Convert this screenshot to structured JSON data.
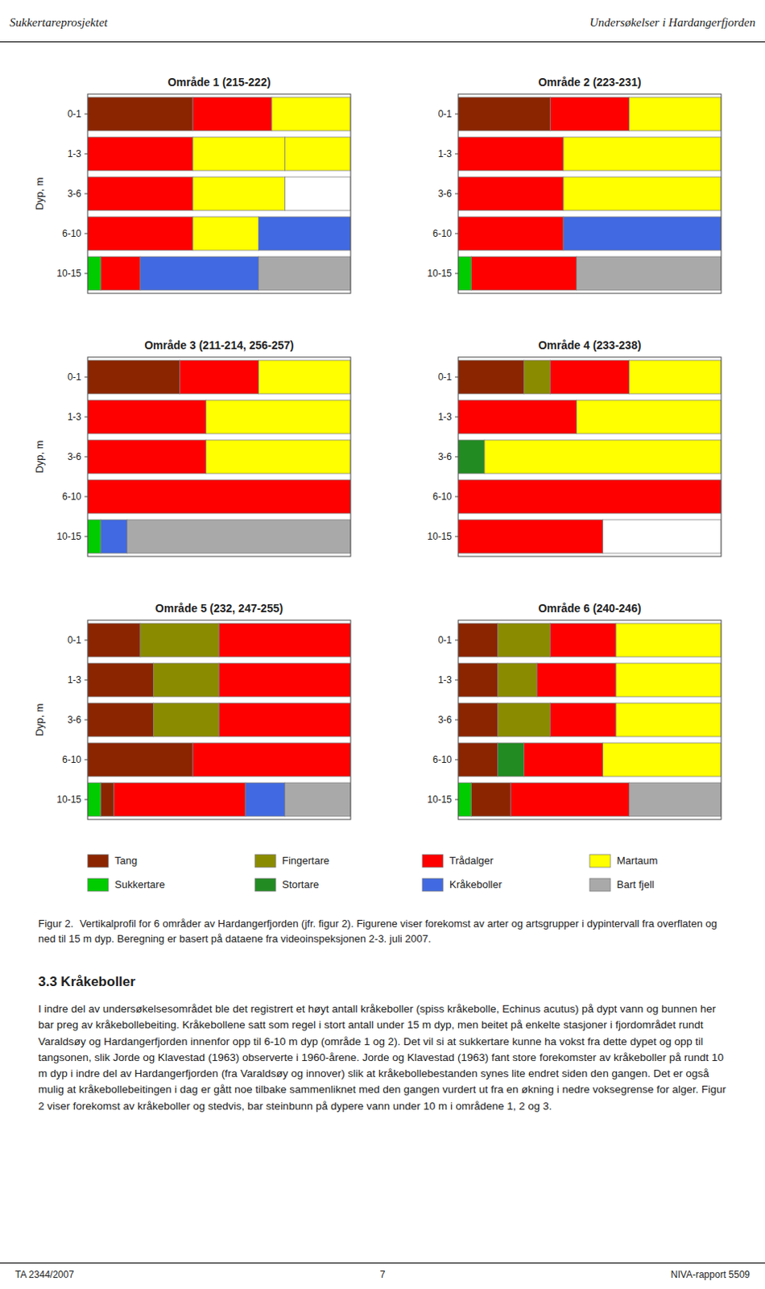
{
  "header_left": "Sukkertareprosjektet",
  "header_right": "Undersøkelser i Hardangerfjorden",
  "legend_entries": [
    {
      "name": "Tang",
      "color": "#8B2500"
    },
    {
      "name": "Fingertare",
      "color": "#8B8B00"
    },
    {
      "name": "Trådalger",
      "color": "#FF0000"
    },
    {
      "name": "Martaum",
      "color": "#FFFF00"
    },
    {
      "name": "Sukkertare",
      "color": "#00CC00"
    },
    {
      "name": "Stortare",
      "color": "#228B22"
    },
    {
      "name": "Kråkeboller",
      "color": "#4169E1"
    },
    {
      "name": "Bart fjell",
      "color": "#A9A9A9"
    }
  ],
  "caption_title": "Figur 2.",
  "caption_text": "Vertikalprofil for 6 områder av Hardangerfjorden (jfr. figur 2). Figurene viser forekomst av arter og artsgrupper i dypintervall fra overflaten og ned til 15 m dyp. Beregning er basert på dataene fra videoinspeksjonen 2-3. juli 2007.",
  "section_title": "3.3 Kråkeboller",
  "section_text": "I indre del av undersøkelsesområdet ble det registrert et høyt antall kråkeboller (spiss kråkebolle, Echinus acutus) på dypt vann og bunnen her bar preg av kråkebollebeiting. Kråkebollene satt som regel i stort antall under 15 m dyp, men beitet på enkelte stasjoner i fjordområdet rundt Varaldsøy og Hardangerfjorden innenfor opp til 6-10 m dyp (område 1 og 2). Det vil si at sukkertare kunne ha vokst fra dette dypet og opp til tangsonen, slik Jorde og Klavestad (1963) observerte i 1960-årene. Jorde og Klavestad (1963) fant store forekomster av kråkeboller på rundt 10 m dyp i indre del av Hardangerfjorden (fra Varaldsøy og innover) slik at kråkebollebestanden synes lite endret siden den gangen. Det er også mulig at kråkebollebeitingen i dag er gått noe tilbake sammenliknet med den gangen vurdert ut fra en økning i nedre voksegrense for alger. Figur 2 viser forekomst av kråkeboller og stedvis, bar steinbunn på dypere vann under 10 m i områdene 1, 2 og 3.",
  "footer_left": "TA 2344/2007",
  "footer_center": "7",
  "footer_right": "NIVA-rapport 5509",
  "chart_data": [
    {
      "type": "bar",
      "orientation": "horizontal",
      "stacked": true,
      "tick_labels": "y",
      "title": "Område 1 (215-222)",
      "ylabel": "Dyp, m",
      "categories": [
        "0-1",
        "1-3",
        "3-6",
        "6-10",
        "10-15"
      ],
      "xlim": [
        0,
        1
      ],
      "series": [
        {
          "values": [
            0.4,
            0.4,
            0.4,
            0.4,
            0.05
          ],
          "colors": [
            "#8B2500",
            "#FF0000",
            "#FF0000",
            "#FF0000",
            "#00CC00"
          ]
        },
        {
          "values": [
            0.3,
            0.35,
            0.35,
            0.25,
            0.15
          ],
          "colors": [
            "#FF0000",
            "#FFFF00",
            "#FFFF00",
            "#FFFF00",
            "#FF0000"
          ]
        },
        {
          "values": [
            0.3,
            0.25,
            0.25,
            0.35,
            0.45
          ],
          "colors": [
            "#FFFF00",
            "#FFFF00",
            "#FFFFFF",
            "#4169E1",
            "#4169E1"
          ]
        },
        {
          "values": [
            null,
            null,
            null,
            null,
            0.35
          ],
          "colors": [
            null,
            null,
            null,
            null,
            "#A9A9A9"
          ]
        }
      ]
    },
    {
      "type": "bar",
      "orientation": "horizontal",
      "stacked": true,
      "tick_labels": "y",
      "title": "Område 2 (223-231)",
      "categories": [
        "0-1",
        "1-3",
        "3-6",
        "6-10",
        "10-15"
      ],
      "xlim": [
        0,
        1
      ],
      "series": [
        {
          "values": [
            0.35,
            0.4,
            0.4,
            0.4,
            0.05
          ],
          "colors": [
            "#8B2500",
            "#FF0000",
            "#FF0000",
            "#FF0000",
            "#00CC00"
          ]
        },
        {
          "values": [
            0.3,
            0.6,
            0.6,
            0.6,
            0.4
          ],
          "colors": [
            "#FF0000",
            "#FFFF00",
            "#FFFF00",
            "#4169E1",
            "#FF0000"
          ]
        },
        {
          "values": [
            0.35,
            null,
            null,
            null,
            0.55
          ],
          "colors": [
            "#FFFF00",
            null,
            null,
            null,
            "#A9A9A9"
          ]
        }
      ]
    },
    {
      "type": "bar",
      "orientation": "horizontal",
      "stacked": true,
      "tick_labels": "y",
      "title": "Område 3 (211-214, 256-257)",
      "ylabel": "Dyp, m",
      "categories": [
        "0-1",
        "1-3",
        "3-6",
        "6-10",
        "10-15"
      ],
      "xlim": [
        0,
        1
      ],
      "series": [
        {
          "values": [
            0.35,
            0.45,
            0.45,
            1.0,
            0.05
          ],
          "colors": [
            "#8B2500",
            "#FF0000",
            "#FF0000",
            "#FF0000",
            "#00CC00"
          ]
        },
        {
          "values": [
            0.3,
            0.55,
            0.55,
            null,
            0.1
          ],
          "colors": [
            "#FF0000",
            "#FFFF00",
            "#FFFF00",
            null,
            "#4169E1"
          ]
        },
        {
          "values": [
            0.35,
            null,
            null,
            null,
            0.85
          ],
          "colors": [
            "#FFFF00",
            null,
            null,
            null,
            "#A9A9A9"
          ]
        }
      ]
    },
    {
      "type": "bar",
      "orientation": "horizontal",
      "stacked": true,
      "tick_labels": "y",
      "title": "Område 4 (233-238)",
      "categories": [
        "0-1",
        "1-3",
        "3-6",
        "6-10",
        "10-15"
      ],
      "xlim": [
        0,
        1
      ],
      "series": [
        {
          "values": [
            0.25,
            0.45,
            0.1,
            1.0,
            0.55
          ],
          "colors": [
            "#8B2500",
            "#FF0000",
            "#228B22",
            "#FF0000",
            "#FF0000"
          ]
        },
        {
          "values": [
            0.1,
            0.55,
            0.9,
            null,
            0.45
          ],
          "colors": [
            "#8B8B00",
            "#FFFF00",
            "#FFFF00",
            null,
            "#FFFFFF"
          ]
        },
        {
          "values": [
            0.3,
            null,
            null,
            null,
            null
          ],
          "colors": [
            "#FF0000",
            null,
            null,
            null,
            null
          ]
        },
        {
          "values": [
            0.35,
            null,
            null,
            null,
            null
          ],
          "colors": [
            "#FFFF00",
            null,
            null,
            null,
            null
          ]
        }
      ]
    },
    {
      "type": "bar",
      "orientation": "horizontal",
      "stacked": true,
      "tick_labels": "y",
      "title": "Område 5 (232, 247-255)",
      "ylabel": "Dyp, m",
      "categories": [
        "0-1",
        "1-3",
        "3-6",
        "6-10",
        "10-15"
      ],
      "xlim": [
        0,
        1
      ],
      "series": [
        {
          "values": [
            0.2,
            0.25,
            0.25,
            0.4,
            0.05
          ],
          "colors": [
            "#8B2500",
            "#8B2500",
            "#8B2500",
            "#8B2500",
            "#00CC00"
          ]
        },
        {
          "values": [
            0.3,
            0.25,
            0.25,
            0.6,
            0.05
          ],
          "colors": [
            "#8B8B00",
            "#8B8B00",
            "#8B8B00",
            "#FF0000",
            "#8B2500"
          ]
        },
        {
          "values": [
            0.5,
            0.5,
            0.5,
            null,
            0.5
          ],
          "colors": [
            "#FF0000",
            "#FF0000",
            "#FF0000",
            null,
            "#FF0000"
          ]
        },
        {
          "values": [
            null,
            null,
            null,
            null,
            0.15
          ],
          "colors": [
            null,
            null,
            null,
            null,
            "#4169E1"
          ]
        },
        {
          "values": [
            null,
            null,
            null,
            null,
            0.25
          ],
          "colors": [
            null,
            null,
            null,
            null,
            "#A9A9A9"
          ]
        }
      ]
    },
    {
      "type": "bar",
      "orientation": "horizontal",
      "stacked": true,
      "tick_labels": "y",
      "title": "Område 6 (240-246)",
      "categories": [
        "0-1",
        "1-3",
        "3-6",
        "6-10",
        "10-15"
      ],
      "xlim": [
        0,
        1
      ],
      "series": [
        {
          "values": [
            0.15,
            0.15,
            0.15,
            0.15,
            0.05
          ],
          "colors": [
            "#8B2500",
            "#8B2500",
            "#8B2500",
            "#8B2500",
            "#00CC00"
          ]
        },
        {
          "values": [
            0.2,
            0.15,
            0.2,
            0.1,
            0.15
          ],
          "colors": [
            "#8B8B00",
            "#8B8B00",
            "#8B8B00",
            "#228B22",
            "#8B2500"
          ]
        },
        {
          "values": [
            0.25,
            0.3,
            0.25,
            0.3,
            0.45
          ],
          "colors": [
            "#FF0000",
            "#FF0000",
            "#FF0000",
            "#FF0000",
            "#FF0000"
          ]
        },
        {
          "values": [
            0.4,
            0.4,
            0.4,
            0.45,
            0.35
          ],
          "colors": [
            "#FFFF00",
            "#FFFF00",
            "#FFFF00",
            "#FFFF00",
            "#A9A9A9"
          ]
        }
      ]
    }
  ]
}
